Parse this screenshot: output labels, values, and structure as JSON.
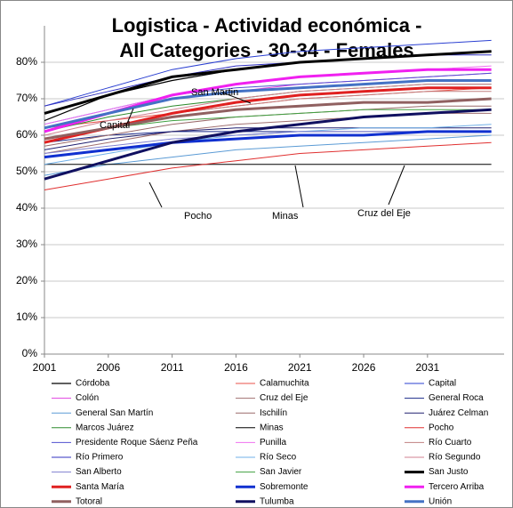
{
  "chart_data": {
    "type": "line",
    "title": [
      "Logistica - Actividad económica -",
      "All Categories - 30-34 - Females"
    ],
    "x": [
      2001,
      2006,
      2011,
      2016,
      2021,
      2026,
      2031,
      2036
    ],
    "xlim": [
      2001,
      2037
    ],
    "xticks": [
      2001,
      2006,
      2011,
      2016,
      2021,
      2026,
      2031
    ],
    "ylim": [
      0,
      90
    ],
    "yticks": [
      {
        "value": 0,
        "label": "0%"
      },
      {
        "value": 10,
        "label": "10%"
      },
      {
        "value": 20,
        "label": "20%"
      },
      {
        "value": 30,
        "label": "30%"
      },
      {
        "value": 40,
        "label": "40%"
      },
      {
        "value": 50,
        "label": "50%"
      },
      {
        "value": 60,
        "label": "60%"
      },
      {
        "value": 70,
        "label": "70%"
      },
      {
        "value": 80,
        "label": "80%"
      }
    ],
    "grid": true,
    "annotations": [
      "Capital",
      "San Martin",
      "Pocho",
      "Minas",
      "Cruz del Eje"
    ],
    "series": [
      {
        "name": "Córdoba",
        "color": "#000000",
        "line_width": 1.2,
        "values": [
          64,
          71,
          75,
          78,
          80,
          81,
          82,
          83
        ]
      },
      {
        "name": "Calamuchita",
        "color": "#e8524a",
        "line_width": 1,
        "values": [
          62,
          64,
          66,
          68,
          70,
          71,
          72,
          73
        ]
      },
      {
        "name": "Capital",
        "color": "#2a3fd1",
        "line_width": 1,
        "values": [
          68,
          73,
          78,
          81,
          83,
          84,
          85,
          86
        ]
      },
      {
        "name": "Colón",
        "color": "#e040e0",
        "line_width": 1,
        "values": [
          62,
          66,
          70,
          72,
          74,
          75,
          76,
          77
        ]
      },
      {
        "name": "Cruz del Eje",
        "color": "#a07070",
        "line_width": 1,
        "values": [
          55,
          58,
          61,
          63,
          64,
          65,
          66,
          66
        ]
      },
      {
        "name": "General Roca",
        "color": "#1a2a8a",
        "line_width": 1,
        "values": [
          58,
          60,
          61,
          61,
          61,
          61,
          61,
          61
        ]
      },
      {
        "name": "General San Martín",
        "color": "#5b9bd5",
        "line_width": 1,
        "values": [
          49,
          52,
          54,
          56,
          57,
          58,
          59,
          60
        ]
      },
      {
        "name": "Ischilín",
        "color": "#9a6a6a",
        "line_width": 1,
        "values": [
          57,
          60,
          63,
          65,
          66,
          67,
          68,
          68
        ]
      },
      {
        "name": "Juárez Celman",
        "color": "#202070",
        "line_width": 1,
        "values": [
          56,
          59,
          61,
          62,
          62,
          62,
          62,
          62
        ]
      },
      {
        "name": "Marcos Juárez",
        "color": "#2e8b2e",
        "line_width": 1,
        "values": [
          61,
          65,
          68,
          70,
          72,
          73,
          74,
          74
        ]
      },
      {
        "name": "Minas",
        "color": "#000000",
        "line_width": 1,
        "values": [
          52,
          52,
          52,
          52,
          52,
          52,
          52,
          52
        ]
      },
      {
        "name": "Pocho",
        "color": "#e03030",
        "line_width": 1,
        "values": [
          45,
          48,
          51,
          53,
          55,
          56,
          57,
          58
        ]
      },
      {
        "name": "Presidente Roque Sáenz Peña",
        "color": "#5050d0",
        "line_width": 1,
        "values": [
          63,
          67,
          71,
          73,
          74,
          75,
          76,
          77
        ]
      },
      {
        "name": "Punilla",
        "color": "#f070f0",
        "line_width": 1,
        "values": [
          63,
          67,
          71,
          74,
          76,
          77,
          78,
          79
        ]
      },
      {
        "name": "Río Cuarto",
        "color": "#c08080",
        "line_width": 1,
        "values": [
          58,
          62,
          66,
          68,
          70,
          71,
          72,
          72
        ]
      },
      {
        "name": "Río Primero",
        "color": "#3030c0",
        "line_width": 1,
        "values": [
          68,
          72,
          76,
          79,
          80,
          81,
          82,
          82
        ]
      },
      {
        "name": "Río Seco",
        "color": "#70b0e8",
        "line_width": 1,
        "values": [
          52,
          55,
          58,
          60,
          61,
          62,
          62,
          63
        ]
      },
      {
        "name": "Río Segundo",
        "color": "#d08090",
        "line_width": 1,
        "values": [
          60,
          64,
          67,
          70,
          72,
          73,
          74,
          74
        ]
      },
      {
        "name": "San Alberto",
        "color": "#8080d0",
        "line_width": 1,
        "values": [
          55,
          57,
          59,
          60,
          61,
          61,
          61,
          61
        ]
      },
      {
        "name": "San Javier",
        "color": "#40a040",
        "line_width": 1,
        "values": [
          59,
          62,
          64,
          65,
          66,
          67,
          67,
          67
        ]
      },
      {
        "name": "San Justo",
        "color": "#000000",
        "line_width": 3,
        "values": [
          66,
          71,
          76,
          78,
          80,
          81,
          82,
          83
        ]
      },
      {
        "name": "Santa María",
        "color": "#e02020",
        "line_width": 3,
        "values": [
          58,
          62,
          66,
          69,
          71,
          72,
          73,
          73
        ]
      },
      {
        "name": "Sobremonte",
        "color": "#1030d0",
        "line_width": 3,
        "values": [
          54,
          56,
          58,
          59,
          60,
          60,
          61,
          61
        ]
      },
      {
        "name": "Tercero Arriba",
        "color": "#f020f0",
        "line_width": 3,
        "values": [
          61,
          66,
          71,
          74,
          76,
          77,
          78,
          78
        ]
      },
      {
        "name": "Totoral",
        "color": "#906060",
        "line_width": 3,
        "values": [
          59,
          62,
          65,
          67,
          68,
          69,
          69,
          70
        ]
      },
      {
        "name": "Tulumba",
        "color": "#101060",
        "line_width": 3,
        "values": [
          48,
          53,
          58,
          61,
          63,
          65,
          66,
          67
        ]
      },
      {
        "name": "Unión",
        "color": "#4472c4",
        "line_width": 3,
        "values": [
          62,
          66,
          70,
          72,
          73,
          74,
          75,
          75
        ]
      }
    ]
  }
}
